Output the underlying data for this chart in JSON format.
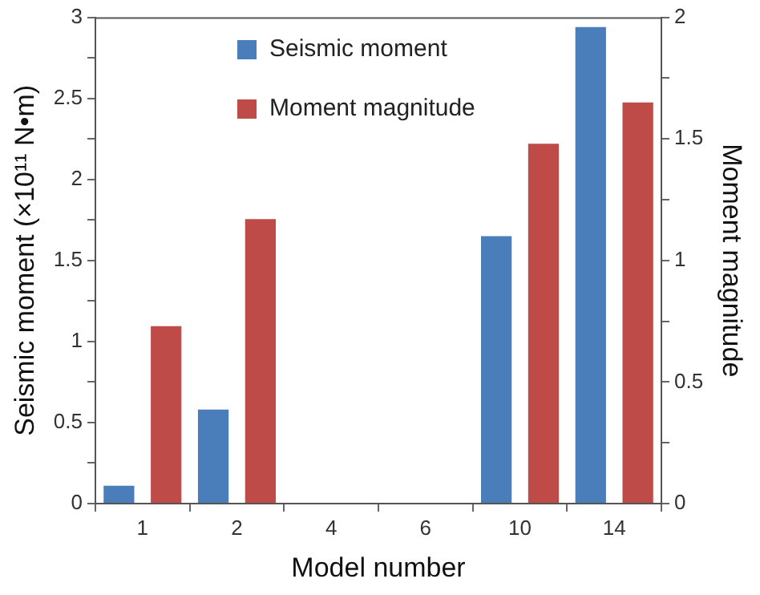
{
  "chart_data": {
    "type": "bar",
    "xlabel": "Model number",
    "ylabel": "Seismic moment (×10¹¹ N•m)",
    "y2label": "Moment magnitude",
    "categories": [
      "1",
      "2",
      "4",
      "6",
      "10",
      "14"
    ],
    "series": [
      {
        "name": "Seismic moment",
        "color": "#4a7ebb",
        "values": [
          0.11,
          0.58,
          0,
          0,
          1.65,
          2.94
        ]
      },
      {
        "name": "Moment magnitude",
        "color": "#be4b48",
        "axis": "y2",
        "values": [
          0.73,
          1.17,
          0,
          0,
          1.48,
          1.65
        ]
      }
    ],
    "ylim": [
      0,
      3
    ],
    "yticks": [
      0,
      {
        "value": 0.25,
        "label": null
      },
      0.5,
      {
        "value": 0.75,
        "label": null
      },
      1,
      {
        "value": 1.25,
        "label": null
      },
      1.5,
      {
        "value": 1.75,
        "label": null
      },
      2,
      {
        "value": 2.25,
        "label": null
      },
      2.5,
      {
        "value": 2.75,
        "label": null
      },
      3
    ],
    "y2lim": [
      0,
      2
    ],
    "y2ticks": [
      0,
      {
        "value": 0.25,
        "label": null
      },
      0.5,
      {
        "value": 0.75,
        "label": null
      },
      1,
      {
        "value": 1.25,
        "label": null
      },
      1.5,
      {
        "value": 1.75,
        "label": null
      },
      2
    ],
    "legend": "top",
    "grid": false
  }
}
